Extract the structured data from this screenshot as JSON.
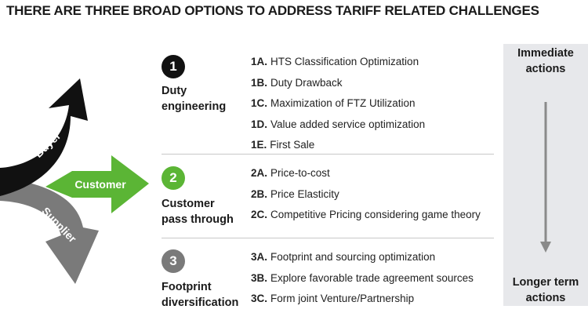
{
  "title": "THERE ARE THREE BROAD OPTIONS TO ADDRESS TARIFF RELATED CHALLENGES",
  "arrows": {
    "buyer": "Buyer",
    "customer": "Customer",
    "supplier": "Supplier",
    "colors": {
      "buyer": "#111111",
      "customer": "#5bb535",
      "supplier": "#7a7a7a"
    }
  },
  "options": [
    {
      "number": "1",
      "label": [
        "Duty",
        "engineering"
      ],
      "color": "#111111",
      "items": [
        {
          "code": "1A.",
          "text": "HTS Classification Optimization"
        },
        {
          "code": "1B.",
          "text": "Duty Drawback"
        },
        {
          "code": "1C.",
          "text": "Maximization of FTZ Utilization"
        },
        {
          "code": "1D.",
          "text": "Value added service optimization"
        },
        {
          "code": "1E.",
          "text": "First Sale"
        }
      ]
    },
    {
      "number": "2",
      "label": [
        "Customer",
        "pass through"
      ],
      "color": "#5bb535",
      "items": [
        {
          "code": "2A.",
          "text": "Price-to-cost"
        },
        {
          "code": "2B.",
          "text": "Price Elasticity"
        },
        {
          "code": "2C.",
          "text": "Competitive Pricing considering  game theory"
        }
      ]
    },
    {
      "number": "3",
      "label": [
        "Footprint",
        "diversification"
      ],
      "color": "#7a7a7a",
      "items": [
        {
          "code": "3A.",
          "text": "Footprint and sourcing optimization"
        },
        {
          "code": "3B.",
          "text": "Explore favorable trade agreement   sources"
        },
        {
          "code": "3C.",
          "text": "Form joint Venture/Partnership"
        }
      ]
    }
  ],
  "timeline": {
    "top": [
      "Immediate",
      "actions"
    ],
    "bottom": [
      "Longer term",
      "actions"
    ],
    "arrow_color": "#8a8a8a"
  }
}
